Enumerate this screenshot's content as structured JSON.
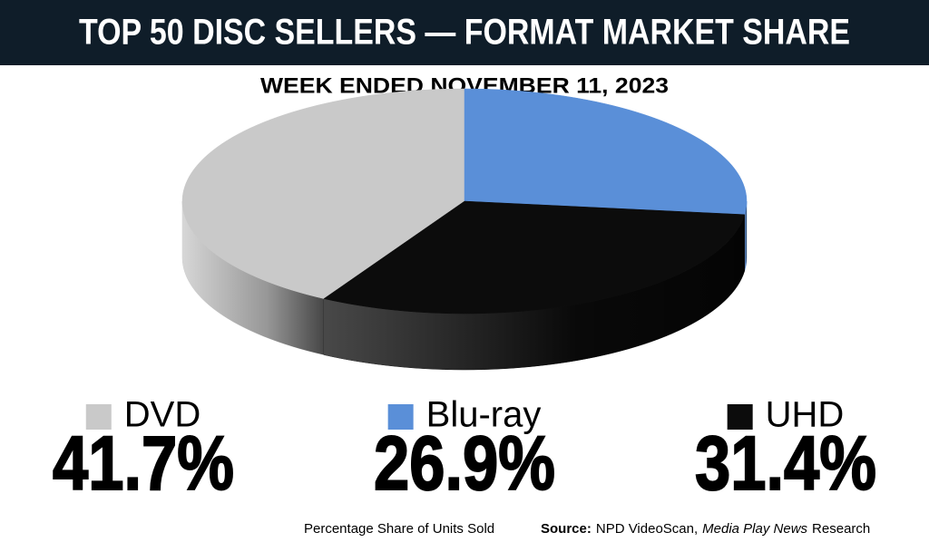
{
  "chart_data": {
    "type": "pie",
    "title": "TOP 50 DISC SELLERS — FORMAT MARKET SHARE",
    "subtitle": "WEEK ENDED NOVEMBER 11, 2023",
    "categories": [
      "DVD",
      "Blu-ray",
      "UHD"
    ],
    "values": [
      41.7,
      26.9,
      31.4
    ],
    "value_labels": [
      "41.7%",
      "26.9%",
      "31.4%"
    ],
    "colors": [
      "#c9c9c9",
      "#5a8fd8",
      "#0c0c0c"
    ],
    "footnote": "Percentage Share of Units Sold",
    "source": {
      "label": "Source:",
      "text": "NPD VideoScan,",
      "publication": "Media Play News",
      "suffix": "Research"
    }
  }
}
